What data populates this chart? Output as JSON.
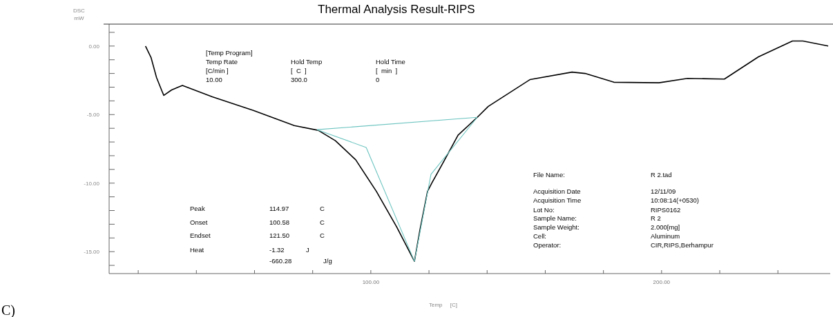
{
  "chart_data": {
    "type": "line",
    "title": "Thermal Analysis Result-RIPS",
    "xlabel": "Temp     [C]",
    "ylabel": "DSC\nmW",
    "xlim": [
      10,
      258
    ],
    "xticks": [
      {
        "value": 20,
        "label": null
      },
      {
        "value": 40,
        "label": null
      },
      {
        "value": 60,
        "label": null
      },
      {
        "value": 80,
        "label": null
      },
      {
        "value": 100,
        "label": "100.00"
      },
      {
        "value": 120,
        "label": null
      },
      {
        "value": 140,
        "label": null
      },
      {
        "value": 160,
        "label": null
      },
      {
        "value": 180,
        "label": null
      },
      {
        "value": 200,
        "label": "200.00"
      },
      {
        "value": 220,
        "label": null
      },
      {
        "value": 240,
        "label": null
      }
    ],
    "ylim": [
      -16.6,
      1.6
    ],
    "yticks": [
      {
        "value": -16,
        "label": null
      },
      {
        "value": -15,
        "label": "-15.00"
      },
      {
        "value": -14,
        "label": null
      },
      {
        "value": -13,
        "label": null
      },
      {
        "value": -12,
        "label": null
      },
      {
        "value": -11,
        "label": null
      },
      {
        "value": -10,
        "label": "-10.00"
      },
      {
        "value": -9,
        "label": null
      },
      {
        "value": -8,
        "label": null
      },
      {
        "value": -7,
        "label": null
      },
      {
        "value": -6,
        "label": null
      },
      {
        "value": -5,
        "label": "-5.00"
      },
      {
        "value": -4,
        "label": null
      },
      {
        "value": -3,
        "label": null
      },
      {
        "value": -2,
        "label": null
      },
      {
        "value": -1,
        "label": null
      },
      {
        "value": 0,
        "label": "0.00"
      },
      {
        "value": 1,
        "label": null
      }
    ],
    "marker": "none",
    "line_style": "solid",
    "series": [
      {
        "color": "#000000",
        "x": [
          22.5,
          24.4,
          26.3,
          28.2,
          28.8,
          31.5,
          35.2,
          45.5,
          59.6,
          73.7,
          81.9,
          87.8,
          94.8,
          101.9,
          108.9,
          115,
          116.9,
          119.5,
          121.1,
          125.4,
          130,
          136.6,
          140.4,
          154.7,
          169.2,
          173.7,
          183.6,
          199.1,
          208.9,
          221.6,
          233.3,
          245,
          248.6,
          257.3
        ],
        "values": [
          0,
          -0.83,
          -2.3,
          -3.3,
          -3.6,
          -3.2,
          -2.87,
          -3.7,
          -4.7,
          -5.8,
          -6.15,
          -6.9,
          -8.3,
          -10.6,
          -13.2,
          -15.7,
          -13.4,
          -10.6,
          -9.95,
          -8.3,
          -6.5,
          -5.2,
          -4.4,
          -2.45,
          -1.9,
          -2.0,
          -2.64,
          -2.68,
          -2.36,
          -2.41,
          -0.79,
          0.37,
          0.37,
          0
        ]
      },
      {
        "color": "#6cc4c0",
        "x": [
          81.5,
          136.6
        ],
        "values": [
          -6.1,
          -5.2
        ]
      },
      {
        "color": "#6cc4c0",
        "x": [
          81.5,
          98.4,
          115,
          120.7,
          136.6
        ],
        "values": [
          -6.1,
          -7.4,
          -15.7,
          -9.35,
          -5.2
        ]
      }
    ],
    "annotations": [
      "[Temp Program]",
      "Temp Rate",
      "[C/min ]",
      "10.00",
      "Hold Temp",
      "[  C  ]",
      "300.0",
      "Hold Time",
      "[  min  ]",
      "0",
      "Peak",
      "114.97",
      "C",
      "Onset",
      "100.58",
      "C",
      "Endset",
      "121.50",
      "C",
      "Heat",
      "-1.32",
      "J",
      "-660.28",
      "J/g",
      "File Name:",
      "R 2.tad",
      "Acquisition Date",
      "12/11/09",
      "Acquisition Time",
      "10:08:14(+0530)",
      "Lot No:",
      "RIPS0162",
      "Sample Name:",
      "R 2",
      "Sample Weight:",
      "2.000[mg]",
      "Cell:",
      "Aluminum",
      "Operator:",
      "CIR,RIPS,Berhampur",
      "C)"
    ]
  }
}
